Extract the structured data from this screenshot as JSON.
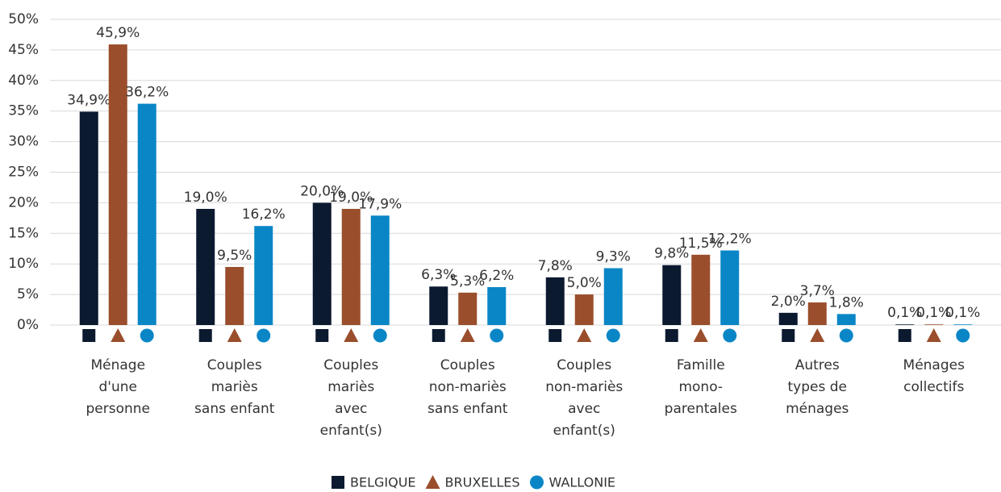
{
  "chart_data": {
    "type": "bar",
    "categories": [
      [
        "Ménage",
        "d'une",
        "personne"
      ],
      [
        "Couples",
        "mariès",
        "sans enfant"
      ],
      [
        "Couples",
        "mariès",
        "avec",
        "enfant(s)"
      ],
      [
        "Couples",
        "non-mariès",
        "sans enfant"
      ],
      [
        "Couples",
        "non-mariès",
        "avec",
        "enfant(s)"
      ],
      [
        "Famille",
        "mono-",
        "parentales"
      ],
      [
        "Autres",
        "types de",
        "ménages"
      ],
      [
        "Ménages",
        "collectifs"
      ]
    ],
    "series": [
      {
        "name": "BELGIQUE",
        "color": "#0c1a30",
        "marker": "square",
        "values": [
          34.9,
          19.0,
          20.0,
          6.3,
          7.8,
          9.8,
          2.0,
          0.1
        ],
        "value_labels": [
          "34,9%",
          "19,0%",
          "20,0%",
          "6,3%",
          "7,8%",
          "9,8%",
          "2,0%",
          "0,1%"
        ]
      },
      {
        "name": "BRUXELLES",
        "color": "#9a4e2b",
        "marker": "triangle",
        "values": [
          45.9,
          9.5,
          19.0,
          5.3,
          5.0,
          11.5,
          3.7,
          0.1
        ],
        "value_labels": [
          "45,9%",
          "9,5%",
          "19,0%",
          "5,3%",
          "5,0%",
          "11,5%",
          "3,7%",
          "0,1%"
        ]
      },
      {
        "name": "WALLONIE",
        "color": "#0a86c6",
        "marker": "circle",
        "values": [
          36.2,
          16.2,
          17.9,
          6.2,
          9.3,
          12.2,
          1.8,
          0.1
        ],
        "value_labels": [
          "36,2%",
          "16,2%",
          "17,9%",
          "6,2%",
          "9,3%",
          "12,2%",
          "1,8%",
          "0,1%"
        ]
      }
    ],
    "ylim": [
      0,
      50
    ],
    "yticks": [
      {
        "value": 0,
        "label": "0%"
      },
      {
        "value": 5,
        "label": "5%"
      },
      {
        "value": 10,
        "label": "10%"
      },
      {
        "value": 15,
        "label": "15%"
      },
      {
        "value": 20,
        "label": "20%"
      },
      {
        "value": 25,
        "label": "25%"
      },
      {
        "value": 30,
        "label": "30%"
      },
      {
        "value": 35,
        "label": "35%"
      },
      {
        "value": 40,
        "label": "40%"
      },
      {
        "value": 45,
        "label": "45%"
      },
      {
        "value": 50,
        "label": "50%"
      }
    ],
    "grid": true,
    "legend": "bottom"
  }
}
